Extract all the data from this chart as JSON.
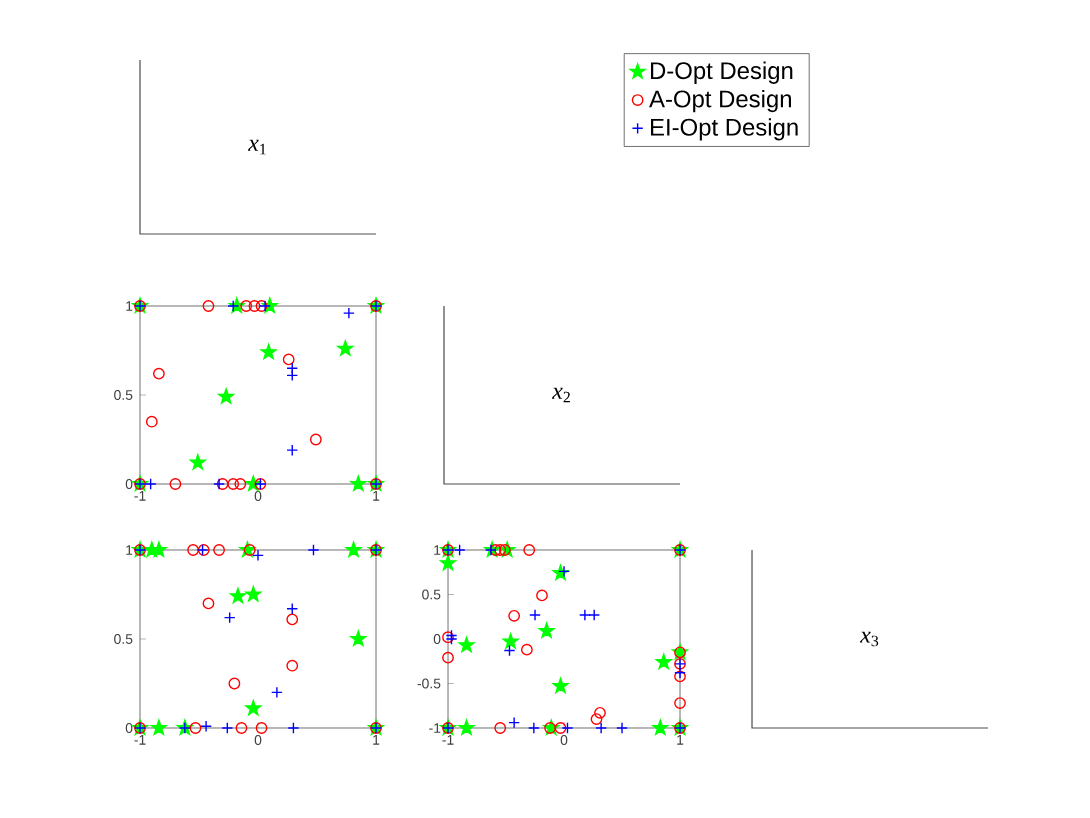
{
  "chart_data": [
    {
      "type": "other",
      "title": "*x*$_{1}$"
    },
    {
      "type": "scatter",
      "xlim": [
        -1,
        1
      ],
      "ylim": [
        0,
        1
      ],
      "xticks": [
        -1,
        0,
        1
      ],
      "yticks": [
        0,
        0.5,
        1
      ],
      "legend": "top right",
      "series": [
        {
          "name": "D-Opt Design",
          "color": "#00ff00",
          "marker": "star",
          "x": [
            -1,
            1,
            0.1,
            -1,
            1,
            0.85,
            -0.04,
            0.09,
            0.74,
            -0.27,
            -0.51,
            -0.18
          ],
          "values": [
            1,
            1,
            1,
            0,
            0,
            0,
            0,
            0.74,
            0.76,
            0.49,
            0.12,
            1
          ]
        },
        {
          "name": "A-Opt Design",
          "color": "#ff0000",
          "marker": "circle",
          "x": [
            -1,
            1,
            -0.42,
            -0.1,
            -0.03,
            0.03,
            -1,
            1,
            -0.7,
            -0.3,
            -0.21,
            -0.15,
            0.02,
            -0.84,
            -0.9,
            0.26,
            0.49
          ],
          "values": [
            1,
            1,
            1,
            1,
            1,
            1,
            0,
            0,
            0,
            0,
            0,
            0,
            0,
            0.62,
            0.35,
            0.7,
            0.25
          ]
        },
        {
          "name": "EI-Opt Design",
          "color": "#0000ff",
          "marker": "cross",
          "x": [
            -1,
            1,
            -0.21,
            0.06,
            0.77,
            0.29,
            0.29,
            0.29,
            -1,
            -0.91,
            -0.33,
            0.02,
            1
          ],
          "values": [
            1,
            1,
            1,
            1,
            0.96,
            0.65,
            0.61,
            0.19,
            0,
            0,
            0,
            0,
            0
          ]
        }
      ]
    },
    {
      "type": "other",
      "title": "*x*$_{2}$"
    },
    {
      "type": "scatter",
      "xlim": [
        -1,
        1
      ],
      "ylim": [
        0,
        1
      ],
      "xticks": [
        -1,
        0,
        1
      ],
      "yticks": [
        0,
        0.5,
        1
      ],
      "series": [
        {
          "color": "#00ff00",
          "marker": "star",
          "x": [
            -1,
            -0.84,
            -0.9,
            -0.09,
            0.81,
            1,
            -0.17,
            -0.04,
            0.85,
            -0.04,
            -1,
            -0.84,
            -0.62,
            1
          ],
          "values": [
            1,
            1,
            1,
            1,
            1,
            1,
            0.74,
            0.75,
            0.5,
            0.11,
            0,
            0,
            0,
            0
          ]
        },
        {
          "color": "#ff0000",
          "marker": "circle",
          "x": [
            -1,
            -0.55,
            -0.46,
            -0.33,
            -0.07,
            1,
            -0.42,
            0.29,
            0.29,
            -0.2,
            -1,
            -0.53,
            -0.14,
            0.03,
            1
          ],
          "values": [
            1,
            1,
            1,
            1,
            1,
            1,
            0.7,
            0.61,
            0.35,
            0.25,
            0,
            0,
            0,
            0,
            0
          ]
        },
        {
          "color": "#0000ff",
          "marker": "cross",
          "x": [
            -1,
            -0.47,
            0,
            0.47,
            1,
            -0.24,
            0.29,
            0.16,
            -1,
            -0.62,
            -0.44,
            -0.26,
            0.3,
            1
          ],
          "values": [
            1,
            1,
            0.97,
            1,
            1,
            0.62,
            0.67,
            0.2,
            0,
            0,
            0.01,
            0,
            0,
            0
          ]
        }
      ]
    },
    {
      "type": "scatter",
      "xlim": [
        -1,
        1
      ],
      "ylim": [
        -1,
        1
      ],
      "xticks": [
        -1,
        0,
        1
      ],
      "yticks": [
        -1,
        -0.5,
        0,
        0.5,
        1
      ],
      "series": [
        {
          "color": "#00ff00",
          "marker": "star",
          "x": [
            -1,
            -1,
            1,
            -0.62,
            -0.49,
            -0.03,
            -0.15,
            -0.84,
            -0.46,
            -0.03,
            0.86,
            1,
            -1,
            -0.84,
            -0.11,
            0.83,
            1
          ],
          "values": [
            1,
            0.85,
            1,
            1,
            1,
            0.74,
            0.09,
            -0.07,
            -0.03,
            -0.53,
            -0.26,
            -0.15,
            -1,
            -1,
            -1,
            -1,
            -1
          ]
        },
        {
          "color": "#ff0000",
          "marker": "circle",
          "x": [
            -1,
            -0.59,
            -0.55,
            -0.51,
            -0.3,
            1,
            -0.19,
            -0.43,
            -0.32,
            -1,
            -1,
            1,
            1,
            1,
            1,
            0.31,
            0.28,
            -1,
            -0.55,
            -0.12,
            -0.03,
            1
          ],
          "values": [
            1,
            1,
            1,
            1,
            1,
            1,
            0.49,
            0.26,
            -0.12,
            0.02,
            -0.21,
            -0.15,
            -0.28,
            -0.42,
            -0.72,
            -0.83,
            -0.9,
            -1,
            -1,
            -1,
            -1,
            -1
          ]
        },
        {
          "color": "#0000ff",
          "marker": "cross",
          "x": [
            -1,
            -0.9,
            -0.63,
            1,
            0,
            -0.25,
            0.18,
            0.26,
            -0.97,
            -0.97,
            -0.47,
            1,
            1,
            -1,
            -0.43,
            -0.26,
            0.03,
            0.32,
            0.5,
            1
          ],
          "values": [
            1,
            1,
            1,
            1,
            0.76,
            0.27,
            0.27,
            0.27,
            0.04,
            0,
            -0.13,
            -0.28,
            -0.38,
            -1,
            -0.94,
            -1,
            -1,
            -1,
            -1,
            -1
          ]
        }
      ]
    },
    {
      "type": "other",
      "title": "*x*$_{3}$"
    }
  ]
}
